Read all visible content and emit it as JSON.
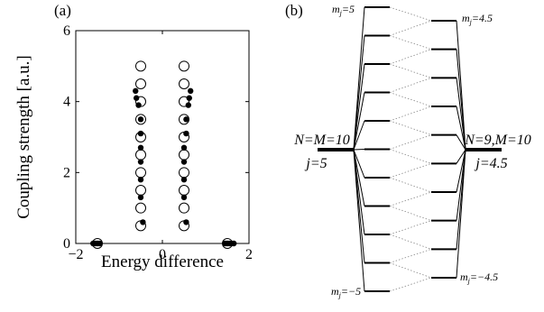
{
  "panels": {
    "a_label": "(a)",
    "b_label": "(b)"
  },
  "chart_data": {
    "type": "scatter",
    "title": "",
    "xlabel": "Energy difference",
    "ylabel": "Coupling strength [a.u.]",
    "xlim": [
      -2,
      2
    ],
    "ylim": [
      0,
      6
    ],
    "xticks": [
      "−2",
      "0",
      "2"
    ],
    "yticks": [
      "0",
      "2",
      "4",
      "6"
    ],
    "grid": false,
    "series": [
      {
        "marker": "open-circle",
        "points": [
          [
            -0.5,
            0.5
          ],
          [
            -0.5,
            1.0
          ],
          [
            -0.5,
            1.5
          ],
          [
            -0.5,
            2.0
          ],
          [
            -0.5,
            2.5
          ],
          [
            -0.5,
            3.0
          ],
          [
            -0.5,
            3.5
          ],
          [
            -0.5,
            4.0
          ],
          [
            -0.5,
            4.5
          ],
          [
            -0.5,
            5.0
          ],
          [
            0.5,
            0.5
          ],
          [
            0.5,
            1.0
          ],
          [
            0.5,
            1.5
          ],
          [
            0.5,
            2.0
          ],
          [
            0.5,
            2.5
          ],
          [
            0.5,
            3.0
          ],
          [
            0.5,
            3.5
          ],
          [
            0.5,
            4.0
          ],
          [
            0.5,
            4.5
          ],
          [
            0.5,
            5.0
          ],
          [
            -1.5,
            0.0
          ],
          [
            1.5,
            0.0
          ]
        ]
      },
      {
        "marker": "filled-dot",
        "points": [
          [
            -0.45,
            0.6
          ],
          [
            -0.5,
            1.3
          ],
          [
            -0.5,
            1.8
          ],
          [
            -0.5,
            2.3
          ],
          [
            -0.5,
            2.7
          ],
          [
            -0.5,
            3.1
          ],
          [
            -0.5,
            3.5
          ],
          [
            -0.55,
            3.9
          ],
          [
            -0.6,
            4.1
          ],
          [
            -0.62,
            4.3
          ],
          [
            0.55,
            0.6
          ],
          [
            0.5,
            1.3
          ],
          [
            0.5,
            1.8
          ],
          [
            0.5,
            2.3
          ],
          [
            0.5,
            2.7
          ],
          [
            0.55,
            3.1
          ],
          [
            0.55,
            3.5
          ],
          [
            0.6,
            3.9
          ],
          [
            0.62,
            4.1
          ],
          [
            0.65,
            4.3
          ],
          [
            -1.6,
            0.0
          ],
          [
            -1.55,
            0.0
          ],
          [
            -1.5,
            0.0
          ],
          [
            -1.45,
            0.0
          ],
          [
            1.45,
            0.0
          ],
          [
            1.5,
            0.0
          ],
          [
            1.55,
            0.0
          ],
          [
            1.6,
            0.0
          ],
          [
            1.65,
            0.0
          ]
        ]
      }
    ]
  },
  "diagram": {
    "left_top_label": "m",
    "left_top_sub": "j",
    "left_top_val": "=5",
    "left_bottom_label": "m",
    "left_bottom_sub": "j",
    "left_bottom_val": "=−5",
    "right_top_label": "m",
    "right_top_sub": "j",
    "right_top_val": "=4.5",
    "right_bottom_label": "m",
    "right_bottom_sub": "j",
    "right_bottom_val": "=−4.5",
    "left_state": "N=M=10",
    "left_j": "j=5",
    "right_state": "N=9,M=10",
    "right_j": "j=4.5",
    "left_levels": 11,
    "right_levels": 10
  }
}
